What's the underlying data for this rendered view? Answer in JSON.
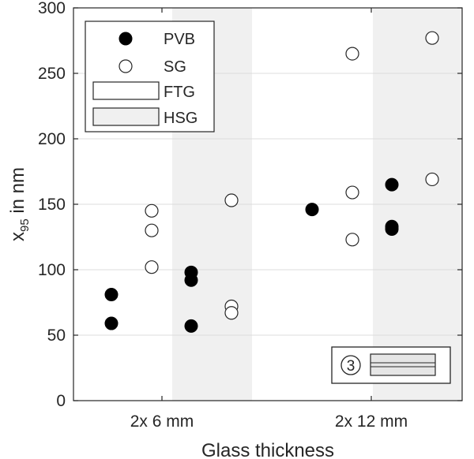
{
  "chart_data": {
    "type": "scatter",
    "xlabel": "Glass thickness",
    "ylabel_main": "x",
    "ylabel_sub": "95",
    "ylabel_suffix": " in nm",
    "ylim": [
      0,
      300
    ],
    "yticks": [
      0,
      50,
      100,
      150,
      200,
      250,
      300
    ],
    "ytick_labels": [
      "0",
      "50",
      "100",
      "150",
      "200",
      "250",
      "300"
    ],
    "categories": [
      "2x 6 mm",
      "2x 12 mm"
    ],
    "grid": "horizontal",
    "legend_position": "top-left",
    "series": [
      {
        "name": "PVB",
        "marker": "filled",
        "color": "#000000",
        "points": [
          {
            "category": "2x 6 mm",
            "group": "FTG",
            "y": 81
          },
          {
            "category": "2x 6 mm",
            "group": "FTG",
            "y": 59
          },
          {
            "category": "2x 6 mm",
            "group": "HSG",
            "y": 98
          },
          {
            "category": "2x 6 mm",
            "group": "HSG",
            "y": 92
          },
          {
            "category": "2x 6 mm",
            "group": "HSG",
            "y": 57
          },
          {
            "category": "2x 12 mm",
            "group": "FTG",
            "y": 146
          },
          {
            "category": "2x 12 mm",
            "group": "HSG",
            "y": 165
          },
          {
            "category": "2x 12 mm",
            "group": "HSG",
            "y": 133
          },
          {
            "category": "2x 12 mm",
            "group": "HSG",
            "y": 131
          }
        ]
      },
      {
        "name": "SG",
        "marker": "open",
        "color": "#000000",
        "points": [
          {
            "category": "2x 6 mm",
            "group": "FTG",
            "y": 145
          },
          {
            "category": "2x 6 mm",
            "group": "FTG",
            "y": 130
          },
          {
            "category": "2x 6 mm",
            "group": "FTG",
            "y": 102
          },
          {
            "category": "2x 6 mm",
            "group": "HSG",
            "y": 153
          },
          {
            "category": "2x 6 mm",
            "group": "HSG",
            "y": 72
          },
          {
            "category": "2x 6 mm",
            "group": "HSG",
            "y": 67
          },
          {
            "category": "2x 12 mm",
            "group": "FTG",
            "y": 265
          },
          {
            "category": "2x 12 mm",
            "group": "FTG",
            "y": 159
          },
          {
            "category": "2x 12 mm",
            "group": "FTG",
            "y": 123
          },
          {
            "category": "2x 12 mm",
            "group": "HSG",
            "y": 277
          },
          {
            "category": "2x 12 mm",
            "group": "HSG",
            "y": 169
          }
        ]
      }
    ],
    "background_groups": [
      {
        "name": "FTG",
        "color": "#ffffff"
      },
      {
        "name": "HSG",
        "color": "#f0f0f0"
      }
    ],
    "legend": [
      {
        "label": "PVB",
        "kind": "marker-filled"
      },
      {
        "label": "SG",
        "kind": "marker-open"
      },
      {
        "label": "FTG",
        "kind": "patch",
        "color": "#ffffff"
      },
      {
        "label": "HSG",
        "kind": "patch",
        "color": "#f0f0f0"
      }
    ],
    "inset_label": "3"
  }
}
